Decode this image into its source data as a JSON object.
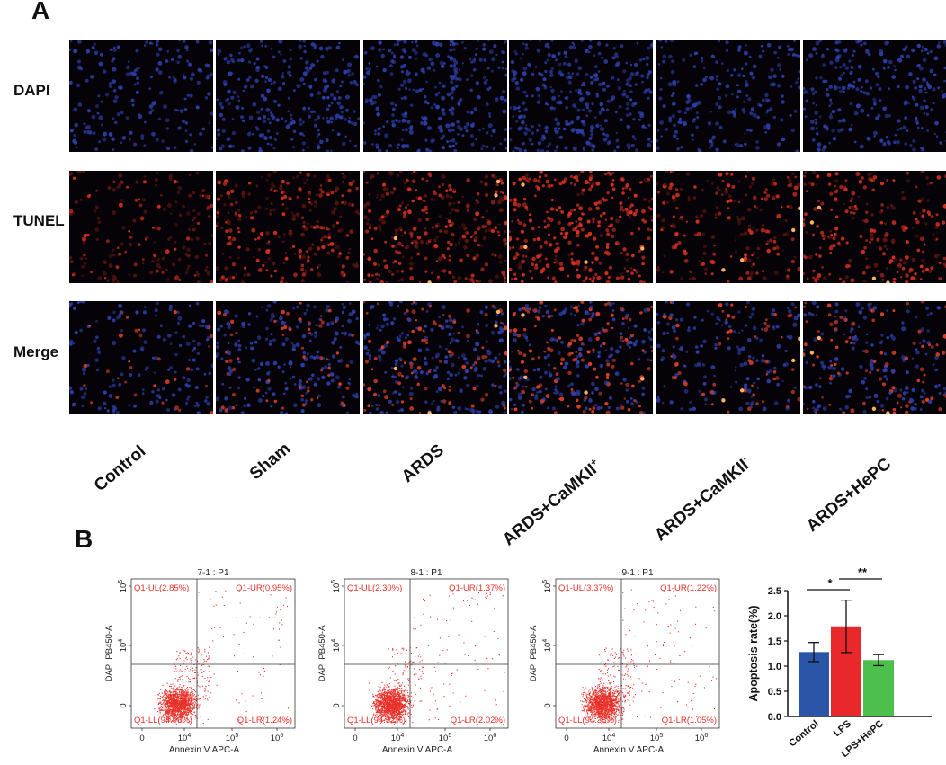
{
  "panel_a": {
    "letter": "A",
    "rows": [
      {
        "label": "DAPI",
        "stain": "dapi"
      },
      {
        "label": "TUNEL",
        "stain": "tunel"
      },
      {
        "label": "Merge",
        "stain": "merge"
      }
    ],
    "columns": [
      {
        "label": "Control",
        "sup": ""
      },
      {
        "label": "Sham",
        "sup": ""
      },
      {
        "label": "ARDS",
        "sup": ""
      },
      {
        "label": "ARDS+CaMKII",
        "sup": "+"
      },
      {
        "label": "ARDS+CaMKII",
        "sup": "-"
      },
      {
        "label": "ARDS+HePC",
        "sup": ""
      }
    ],
    "colors": {
      "dapi": "#2e3ea8",
      "tunel": "#d83020",
      "merge_red": "#e0402c",
      "bright": "#ffb060"
    }
  },
  "panel_b": {
    "letter": "B",
    "flow_plots": [
      {
        "title": "7-1 : P1",
        "ul": "Q1-UL(2.85%)",
        "ur": "Q1-UR(0.95%)",
        "ll": "Q1-LL(94.96%)",
        "lr": "Q1-LR(1.24%)"
      },
      {
        "title": "8-1 : P1",
        "ul": "Q1-UL(2.30%)",
        "ur": "Q1-UR(1.37%)",
        "ll": "Q1-LL(94.32%)",
        "lr": "Q1-LR(2.02%)"
      },
      {
        "title": "9-1 : P1",
        "ul": "Q1-UL(3.37%)",
        "ur": "Q1-UR(1.22%)",
        "ll": "Q1-LL(94.36%)",
        "lr": "Q1-LR(1.05%)"
      }
    ],
    "flow_axes": {
      "xlabel": "Annexin V APC-A",
      "ylabel": "DAPI PB450-A",
      "xticks": [
        {
          "base": "0",
          "exp": ""
        },
        {
          "base": "10",
          "exp": "4"
        },
        {
          "base": "10",
          "exp": "5"
        },
        {
          "base": "10",
          "exp": "6"
        }
      ],
      "yticks": [
        {
          "base": "0",
          "exp": ""
        },
        {
          "base": "10",
          "exp": "4"
        },
        {
          "base": "10",
          "exp": "5"
        }
      ],
      "dot_color": "#e8302a",
      "label_color": "#e8302a"
    }
  },
  "chart_data": {
    "type": "bar",
    "title": "",
    "xlabel": "",
    "ylabel": "Apoptosis rate(%)",
    "ylim": [
      0,
      2.5
    ],
    "yticks": [
      "0.0",
      "0.5",
      "1.0",
      "1.5",
      "2.0",
      "2.5"
    ],
    "categories": [
      "Control",
      "LPS",
      "LPS+HePC"
    ],
    "values": [
      1.28,
      1.79,
      1.12
    ],
    "errors": [
      0.19,
      0.52,
      0.11
    ],
    "colors": [
      "#2b55a8",
      "#e8282a",
      "#4cbf4c"
    ],
    "significance": [
      {
        "from": 0,
        "to": 1,
        "label": "*"
      },
      {
        "from": 1,
        "to": 2,
        "label": "**"
      }
    ]
  }
}
